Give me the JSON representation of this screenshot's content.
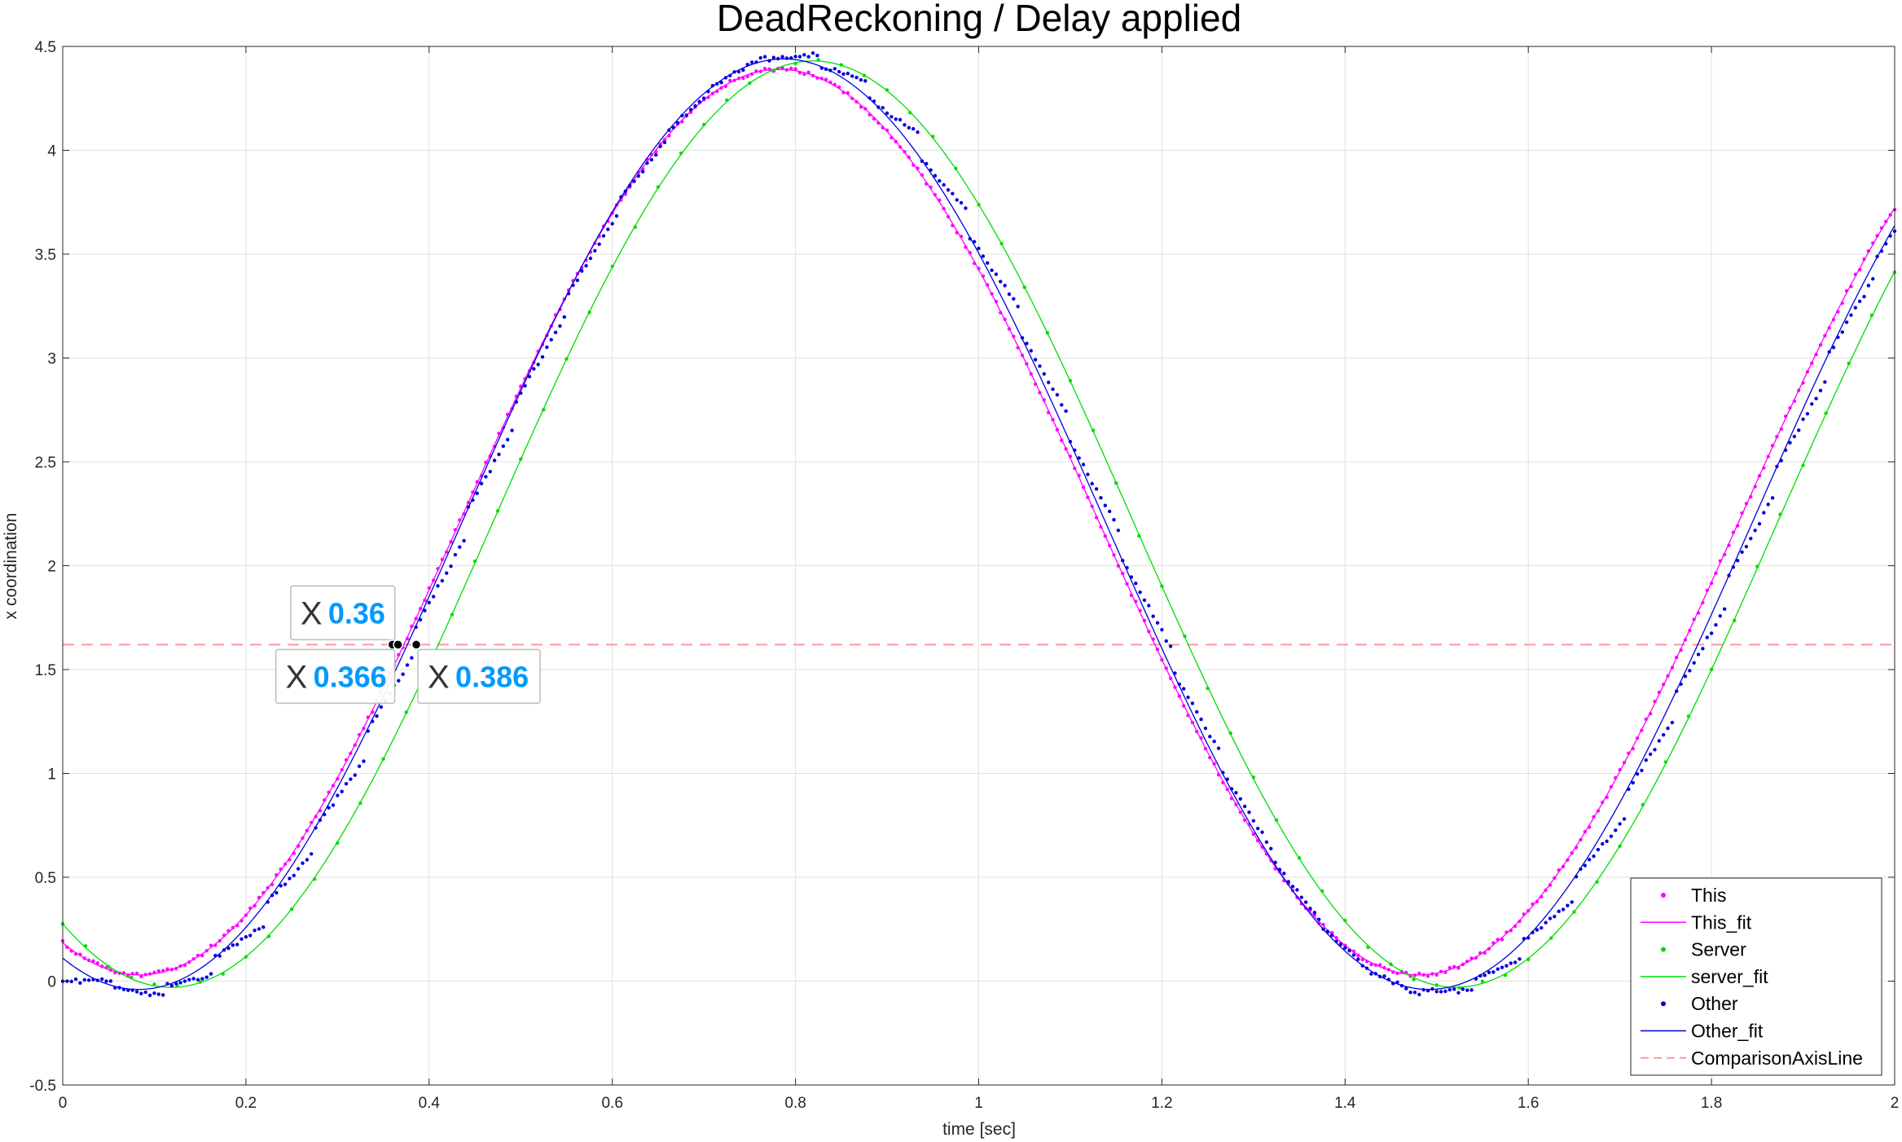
{
  "chart_data": {
    "type": "scatter",
    "title": "DeadReckoning / Delay applied",
    "xlabel": "time [sec]",
    "ylabel": "x coordination",
    "xlim": [
      0,
      2
    ],
    "ylim": [
      -0.5,
      4.5
    ],
    "xticks": [
      "0",
      "0.2",
      "0.4",
      "0.6",
      "0.8",
      "1",
      "1.2",
      "1.4",
      "1.6",
      "1.8",
      "2"
    ],
    "yticks": [
      "-0.5",
      "0",
      "0.5",
      "1",
      "1.5",
      "2",
      "2.5",
      "3",
      "3.5",
      "4",
      "4.5"
    ],
    "grid": true,
    "legend_position": "bottom-right",
    "comparison_line": {
      "name": "ComparisonAxisLine",
      "y": 1.62,
      "color": "#ff9999"
    },
    "series": [
      {
        "name": "This",
        "kind": "markers",
        "color": "#ff00ff",
        "model": {
          "offset": 2.21,
          "amplitude": 2.18,
          "omega": 4.5,
          "phase": -1.95
        }
      },
      {
        "name": "This_fit",
        "kind": "line",
        "color": "#ff00ff",
        "model": {
          "offset": 2.21,
          "amplitude": 2.18,
          "omega": 4.5,
          "phase": -1.95
        }
      },
      {
        "name": "Server",
        "kind": "markers",
        "color": "#00dd00",
        "model": {
          "offset": 2.2,
          "amplitude": 2.23,
          "omega": 4.48,
          "phase": -2.1
        }
      },
      {
        "name": "server_fit",
        "kind": "line",
        "color": "#00dd00",
        "model": {
          "offset": 2.2,
          "amplitude": 2.23,
          "omega": 4.48,
          "phase": -2.1
        }
      },
      {
        "name": "Other",
        "kind": "markers",
        "color": "#0000dd",
        "model": {
          "offset": 2.2,
          "amplitude": 2.24,
          "omega": 4.46,
          "phase": -1.94,
          "delay": 0.04
        }
      },
      {
        "name": "Other_fit",
        "kind": "line",
        "color": "#0000dd",
        "model": {
          "offset": 2.2,
          "amplitude": 2.24,
          "omega": 4.46,
          "phase": -1.94,
          "delay": 0.04
        }
      }
    ],
    "datatips": [
      {
        "id": "tip-this",
        "label": "X",
        "value": "0.36",
        "x": 0.36,
        "y": 1.62,
        "placement": "above"
      },
      {
        "id": "tip-server",
        "label": "X",
        "value": "0.366",
        "x": 0.366,
        "y": 1.62,
        "placement": "below-left"
      },
      {
        "id": "tip-other",
        "label": "X",
        "value": "0.386",
        "x": 0.386,
        "y": 1.62,
        "placement": "below-right"
      }
    ],
    "legend_entries": [
      "This",
      "This_fit",
      "Server",
      "server_fit",
      "Other",
      "Other_fit",
      "ComparisonAxisLine"
    ]
  }
}
